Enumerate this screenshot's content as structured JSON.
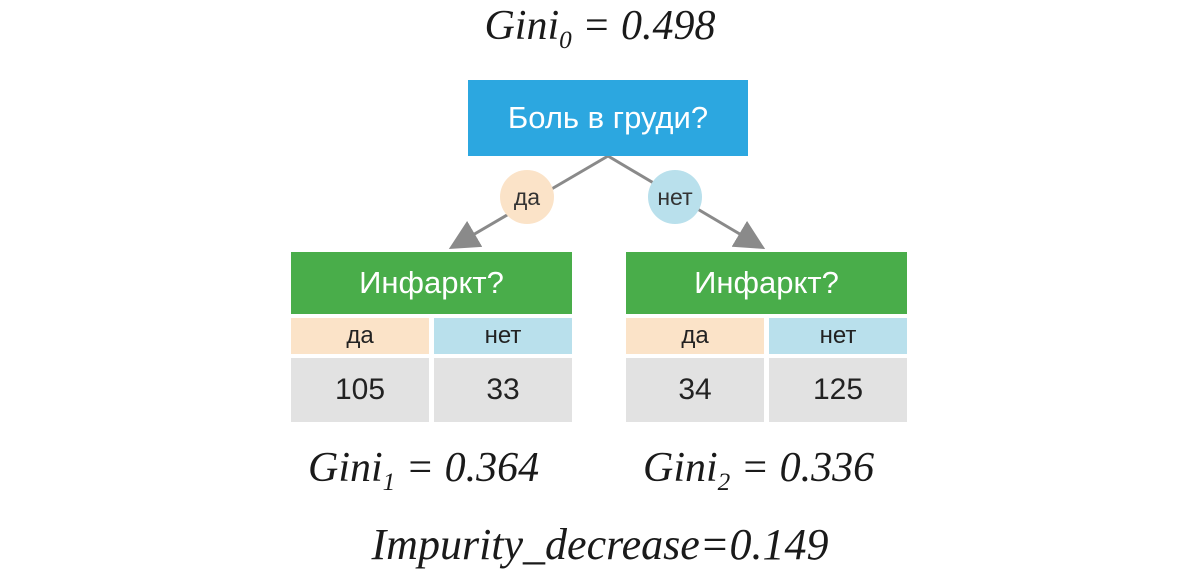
{
  "gini0": {
    "label": "Gini",
    "sub": "0",
    "rhs": " = 0.498"
  },
  "root": {
    "question": "Боль в груди?"
  },
  "branches": {
    "yes": "да",
    "no": "нет"
  },
  "left": {
    "question": "Инфаркт?",
    "col_yes": "да",
    "col_no": "нет",
    "val_yes": "105",
    "val_no": "33",
    "gini": {
      "label": "Gini",
      "sub": "1",
      "rhs": " = 0.364"
    }
  },
  "right": {
    "question": "Инфаркт?",
    "col_yes": "да",
    "col_no": "нет",
    "val_yes": "34",
    "val_no": "125",
    "gini": {
      "label": "Gini",
      "sub": "2",
      "rhs": " = 0.336"
    }
  },
  "impurity": "Impurity_decrease=0.149",
  "colors": {
    "root": "#2ca7e0",
    "node": "#49ad4a",
    "yes": "#fbe3c8",
    "no": "#b9e0ec",
    "value": "#e2e2e2",
    "arrow": "#8a8a8a"
  }
}
